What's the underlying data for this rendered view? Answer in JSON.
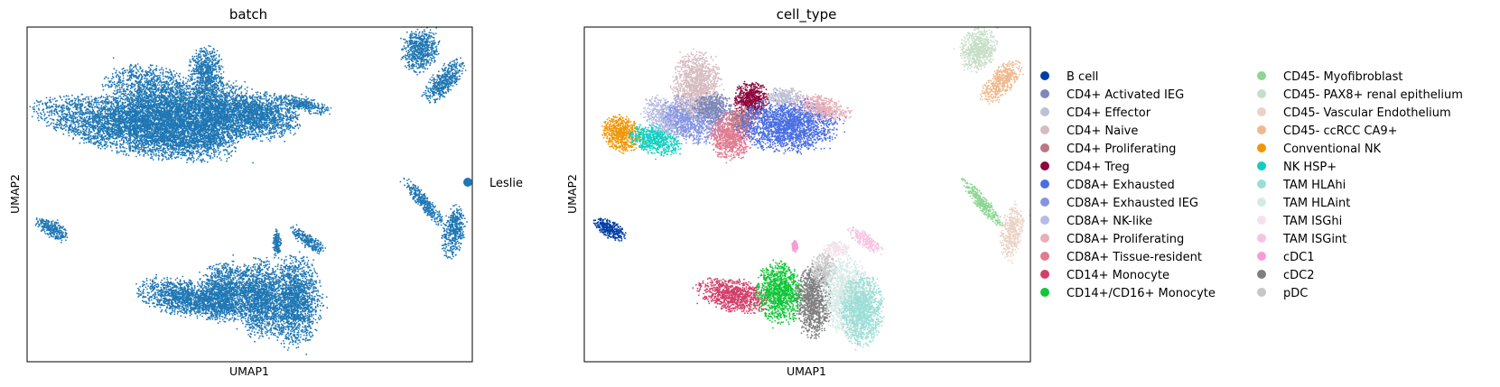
{
  "chart_data": [
    {
      "type": "scatter",
      "title": "batch",
      "xlabel": "UMAP1",
      "ylabel": "UMAP2",
      "grid": false,
      "ticks": "none",
      "legend_placement": "right",
      "series": [
        {
          "name": "Leslie",
          "color": "#1f77b4"
        }
      ],
      "regions": [
        {
          "cx": -5.0,
          "cy": 2.3,
          "rx": 4.6,
          "ry": 0.9,
          "rot": -8,
          "series": "Leslie",
          "density": 1.0
        },
        {
          "cx": -3.4,
          "cy": 3.0,
          "rx": 3.0,
          "ry": 1.2,
          "rot": -15,
          "series": "Leslie",
          "density": 1.0
        },
        {
          "cx": -1.6,
          "cy": 4.2,
          "rx": 0.8,
          "ry": 0.9,
          "rot": 0,
          "series": "Leslie",
          "density": 0.8
        },
        {
          "cx": -1.0,
          "cy": 2.8,
          "rx": 1.8,
          "ry": 1.1,
          "rot": 0,
          "series": "Leslie",
          "density": 0.9
        },
        {
          "cx": 1.1,
          "cy": 2.7,
          "rx": 1.8,
          "ry": 0.8,
          "rot": 0,
          "series": "Leslie",
          "density": 0.9
        },
        {
          "cx": 3.2,
          "cy": 3.1,
          "rx": 1.2,
          "ry": 0.25,
          "rot": -10,
          "series": "Leslie",
          "density": 0.6
        },
        {
          "cx": 8.7,
          "cy": 5.0,
          "rx": 0.9,
          "ry": 0.7,
          "rot": 20,
          "series": "Leslie",
          "density": 0.9
        },
        {
          "cx": 9.8,
          "cy": 3.9,
          "rx": 1.1,
          "ry": 0.45,
          "rot": 35,
          "series": "Leslie",
          "density": 0.8
        },
        {
          "cx": 8.9,
          "cy": -0.3,
          "rx": 1.2,
          "ry": 0.25,
          "rot": -40,
          "series": "Leslie",
          "density": 0.8
        },
        {
          "cx": 10.3,
          "cy": -1.3,
          "rx": 0.5,
          "ry": 0.9,
          "rot": -15,
          "series": "Leslie",
          "density": 0.8
        },
        {
          "cx": -9.0,
          "cy": -1.2,
          "rx": 0.8,
          "ry": 0.3,
          "rot": -20,
          "series": "Leslie",
          "density": 0.8
        },
        {
          "cx": -2.6,
          "cy": -3.6,
          "rx": 2.3,
          "ry": 0.6,
          "rot": -8,
          "series": "Leslie",
          "density": 1.0
        },
        {
          "cx": -0.7,
          "cy": -3.4,
          "rx": 1.2,
          "ry": 1.0,
          "rot": 0,
          "series": "Leslie",
          "density": 1.0
        },
        {
          "cx": 0.9,
          "cy": -3.6,
          "rx": 1.0,
          "ry": 1.3,
          "rot": 0,
          "series": "Leslie",
          "density": 1.0
        },
        {
          "cx": 2.6,
          "cy": -3.7,
          "rx": 1.3,
          "ry": 1.5,
          "rot": 0,
          "series": "Leslie",
          "density": 1.0
        },
        {
          "cx": 1.8,
          "cy": -1.7,
          "rx": 0.2,
          "ry": 0.4,
          "rot": 0,
          "series": "Leslie",
          "density": 0.6
        },
        {
          "cx": 3.3,
          "cy": -1.6,
          "rx": 0.9,
          "ry": 0.25,
          "rot": -25,
          "series": "Leslie",
          "density": 0.6
        }
      ]
    },
    {
      "type": "scatter",
      "title": "cell_type",
      "xlabel": "UMAP1",
      "ylabel": "UMAP2",
      "grid": false,
      "ticks": "none",
      "legend_placement": "right",
      "series": [
        {
          "name": "B cell",
          "color": "#023fa5"
        },
        {
          "name": "CD4+ Activated IEG",
          "color": "#7d87b9"
        },
        {
          "name": "CD4+ Effector",
          "color": "#bec1d4"
        },
        {
          "name": "CD4+ Naive",
          "color": "#d6bcc0"
        },
        {
          "name": "CD4+ Proliferating",
          "color": "#bb7784"
        },
        {
          "name": "CD4+ Treg",
          "color": "#8e063b"
        },
        {
          "name": "CD8A+ Exhausted",
          "color": "#4a6fe3"
        },
        {
          "name": "CD8A+ Exhausted IEG",
          "color": "#8595e1"
        },
        {
          "name": "CD8A+ NK-like",
          "color": "#b5bbe3"
        },
        {
          "name": "CD8A+ Proliferating",
          "color": "#e6afb9"
        },
        {
          "name": "CD8A+ Tissue-resident",
          "color": "#e07b91"
        },
        {
          "name": "CD14+ Monocyte",
          "color": "#d33f6a"
        },
        {
          "name": "CD14+/CD16+ Monocyte",
          "color": "#11c638"
        },
        {
          "name": "CD45- Myofibroblast",
          "color": "#8dd593"
        },
        {
          "name": "CD45- PAX8+ renal epithelium",
          "color": "#c6dec7"
        },
        {
          "name": "CD45- Vascular Endothelium",
          "color": "#ead3c6"
        },
        {
          "name": "CD45- ccRCC CA9+",
          "color": "#f0b98d"
        },
        {
          "name": "Conventional NK",
          "color": "#ef9708"
        },
        {
          "name": "NK HSP+",
          "color": "#0fcfc0"
        },
        {
          "name": "TAM HLAhi",
          "color": "#9cded6"
        },
        {
          "name": "TAM HLAint",
          "color": "#d5eae7"
        },
        {
          "name": "TAM ISGhi",
          "color": "#f3e1eb"
        },
        {
          "name": "TAM ISGint",
          "color": "#f6c4e1"
        },
        {
          "name": "cDC1",
          "color": "#f79cd4"
        },
        {
          "name": "cDC2",
          "color": "#7f7f7f"
        },
        {
          "name": "pDC",
          "color": "#c7c7c7"
        }
      ],
      "regions": [
        {
          "cx": -8.4,
          "cy": 2.1,
          "rx": 0.9,
          "ry": 0.6,
          "rot": -10,
          "series": "Conventional NK",
          "density": 1.0
        },
        {
          "cx": -6.8,
          "cy": 1.9,
          "rx": 1.2,
          "ry": 0.5,
          "rot": -10,
          "series": "NK HSP+",
          "density": 0.9
        },
        {
          "cx": -6.3,
          "cy": 2.7,
          "rx": 1.1,
          "ry": 0.6,
          "rot": -20,
          "series": "CD8A+ NK-like",
          "density": 0.8
        },
        {
          "cx": -5.0,
          "cy": 2.6,
          "rx": 1.4,
          "ry": 0.8,
          "rot": -10,
          "series": "CD8A+ Exhausted IEG",
          "density": 0.8
        },
        {
          "cx": -4.8,
          "cy": 3.8,
          "rx": 1.1,
          "ry": 1.1,
          "rot": 0,
          "series": "CD4+ Naive",
          "density": 1.0
        },
        {
          "cx": -4.0,
          "cy": 3.0,
          "rx": 0.9,
          "ry": 0.5,
          "rot": 0,
          "series": "CD4+ Activated IEG",
          "density": 0.9
        },
        {
          "cx": -3.2,
          "cy": 2.0,
          "rx": 1.0,
          "ry": 0.8,
          "rot": 0,
          "series": "CD8A+ Tissue-resident",
          "density": 1.0
        },
        {
          "cx": -2.2,
          "cy": 3.3,
          "rx": 0.8,
          "ry": 0.6,
          "rot": 0,
          "series": "CD4+ Treg",
          "density": 1.0
        },
        {
          "cx": -2.6,
          "cy": 2.6,
          "rx": 0.7,
          "ry": 0.4,
          "rot": 0,
          "series": "CD4+ Proliferating",
          "density": 0.7
        },
        {
          "cx": -0.4,
          "cy": 2.4,
          "rx": 2.3,
          "ry": 0.9,
          "rot": 0,
          "series": "CD8A+ Exhausted",
          "density": 1.0
        },
        {
          "cx": 1.2,
          "cy": 3.0,
          "rx": 1.4,
          "ry": 0.4,
          "rot": -10,
          "series": "CD8A+ Proliferating",
          "density": 0.7
        },
        {
          "cx": -0.6,
          "cy": 3.4,
          "rx": 0.8,
          "ry": 0.3,
          "rot": 0,
          "series": "CD4+ Effector",
          "density": 0.6
        },
        {
          "cx": 8.7,
          "cy": 5.0,
          "rx": 0.9,
          "ry": 0.7,
          "rot": 20,
          "series": "CD45- PAX8+ renal epithelium",
          "density": 0.9
        },
        {
          "cx": 9.8,
          "cy": 3.9,
          "rx": 1.1,
          "ry": 0.45,
          "rot": 35,
          "series": "CD45- ccRCC CA9+",
          "density": 0.8
        },
        {
          "cx": 8.9,
          "cy": -0.3,
          "rx": 1.2,
          "ry": 0.25,
          "rot": -40,
          "series": "CD45- Myofibroblast",
          "density": 0.8
        },
        {
          "cx": 10.3,
          "cy": -1.3,
          "rx": 0.5,
          "ry": 0.9,
          "rot": -15,
          "series": "CD45- Vascular Endothelium",
          "density": 0.8
        },
        {
          "cx": -9.0,
          "cy": -1.2,
          "rx": 0.8,
          "ry": 0.3,
          "rot": -20,
          "series": "B cell",
          "density": 1.0
        },
        {
          "cx": -3.0,
          "cy": -3.5,
          "rx": 1.7,
          "ry": 0.55,
          "rot": -8,
          "series": "CD14+ Monocyte",
          "density": 1.0
        },
        {
          "cx": -0.8,
          "cy": -3.4,
          "rx": 1.1,
          "ry": 1.0,
          "rot": 0,
          "series": "CD14+/CD16+ Monocyte",
          "density": 1.0
        },
        {
          "cx": 0.8,
          "cy": -3.7,
          "rx": 0.8,
          "ry": 1.2,
          "rot": 0,
          "series": "cDC2",
          "density": 1.0
        },
        {
          "cx": 1.3,
          "cy": -2.6,
          "rx": 0.6,
          "ry": 0.6,
          "rot": 0,
          "series": "pDC",
          "density": 0.6
        },
        {
          "cx": 2.4,
          "cy": -3.5,
          "rx": 1.1,
          "ry": 1.3,
          "rot": 0,
          "series": "TAM HLAint",
          "density": 1.0
        },
        {
          "cx": 3.1,
          "cy": -4.0,
          "rx": 1.0,
          "ry": 1.2,
          "rot": 0,
          "series": "TAM HLAhi",
          "density": 1.0
        },
        {
          "cx": 3.3,
          "cy": -1.6,
          "rx": 0.9,
          "ry": 0.25,
          "rot": -25,
          "series": "TAM ISGint",
          "density": 0.6
        },
        {
          "cx": 1.9,
          "cy": -1.9,
          "rx": 0.6,
          "ry": 0.25,
          "rot": 0,
          "series": "TAM ISGhi",
          "density": 0.5
        },
        {
          "cx": -0.1,
          "cy": -1.8,
          "rx": 0.15,
          "ry": 0.2,
          "rot": 0,
          "series": "cDC1",
          "density": 0.6
        }
      ]
    }
  ]
}
